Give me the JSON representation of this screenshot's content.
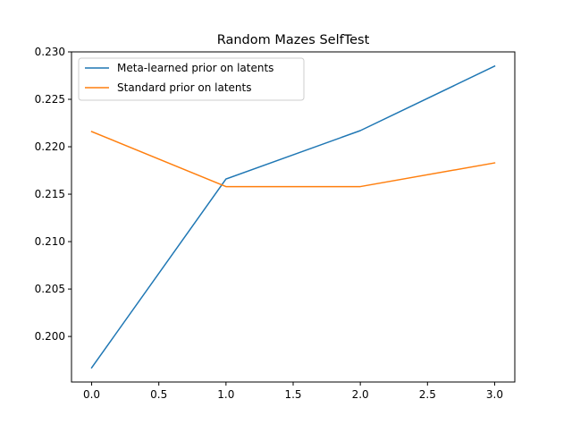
{
  "chart_data": {
    "type": "line",
    "title": "Random Mazes SelfTest",
    "xlabel": "",
    "ylabel": "",
    "x": [
      0.0,
      1.0,
      2.0,
      3.0
    ],
    "xlim": [
      -0.15,
      3.15
    ],
    "ylim": [
      0.1952,
      0.23
    ],
    "xticks": [
      "0.0",
      "0.5",
      "1.0",
      "1.5",
      "2.0",
      "2.5",
      "3.0"
    ],
    "yticks": [
      "0.200",
      "0.205",
      "0.210",
      "0.215",
      "0.220",
      "0.225",
      "0.230"
    ],
    "grid": false,
    "legend_position": "upper-left",
    "series": [
      {
        "name": "Meta-learned prior on latents",
        "color": "#1f77b4",
        "values": [
          0.1967,
          0.2166,
          0.2217,
          0.2285
        ]
      },
      {
        "name": "Standard prior on latents",
        "color": "#ff7f0e",
        "values": [
          0.2216,
          0.2158,
          0.2158,
          0.2183
        ]
      }
    ]
  }
}
